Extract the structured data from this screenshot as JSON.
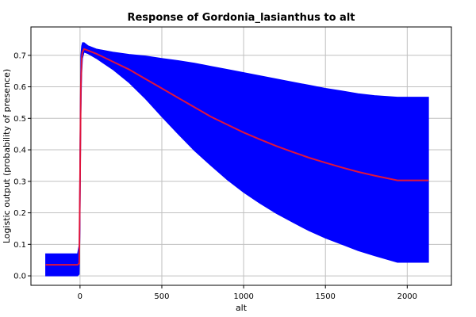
{
  "chart_data": {
    "type": "line",
    "title": "Response of Gordonia_lasianthus to alt",
    "xlabel": "alt",
    "ylabel": "Logistic output (probability of presence)",
    "xlim": [
      -300,
      2270
    ],
    "ylim": [
      -0.03,
      0.79
    ],
    "xticks": [
      0,
      500,
      1000,
      1500,
      2000
    ],
    "yticks": [
      0.0,
      0.1,
      0.2,
      0.3,
      0.4,
      0.5,
      0.6,
      0.7
    ],
    "grid": true,
    "colors": {
      "band": "#0000ff",
      "line": "#e0143c"
    },
    "series": [
      {
        "role": "mean",
        "x": [
          -210,
          -15,
          -5,
          0,
          5,
          10,
          15,
          25,
          50,
          100,
          200,
          300,
          400,
          500,
          600,
          700,
          800,
          900,
          1000,
          1100,
          1200,
          1300,
          1400,
          1500,
          1600,
          1700,
          1800,
          1940,
          2130
        ],
        "y": [
          0.035,
          0.035,
          0.04,
          0.3,
          0.6,
          0.69,
          0.71,
          0.72,
          0.715,
          0.705,
          0.68,
          0.655,
          0.625,
          0.595,
          0.565,
          0.535,
          0.505,
          0.48,
          0.455,
          0.433,
          0.412,
          0.393,
          0.375,
          0.359,
          0.344,
          0.33,
          0.318,
          0.303,
          0.303
        ]
      },
      {
        "role": "upper",
        "x": [
          -210,
          -15,
          -5,
          0,
          5,
          10,
          15,
          25,
          50,
          100,
          200,
          300,
          400,
          500,
          600,
          700,
          800,
          900,
          1000,
          1100,
          1200,
          1300,
          1400,
          1500,
          1600,
          1700,
          1800,
          1940,
          2130
        ],
        "y": [
          0.07,
          0.07,
          0.1,
          0.43,
          0.7,
          0.73,
          0.74,
          0.74,
          0.73,
          0.72,
          0.71,
          0.703,
          0.698,
          0.69,
          0.683,
          0.675,
          0.665,
          0.655,
          0.645,
          0.635,
          0.625,
          0.615,
          0.605,
          0.595,
          0.587,
          0.578,
          0.572,
          0.567,
          0.567
        ]
      },
      {
        "role": "lower",
        "x": [
          -210,
          -15,
          -5,
          0,
          5,
          10,
          15,
          25,
          50,
          100,
          200,
          300,
          400,
          500,
          600,
          700,
          800,
          900,
          1000,
          1100,
          1200,
          1300,
          1400,
          1500,
          1600,
          1700,
          1800,
          1940,
          2130
        ],
        "y": [
          0.0,
          0.0,
          0.005,
          0.15,
          0.5,
          0.64,
          0.69,
          0.71,
          0.705,
          0.69,
          0.655,
          0.613,
          0.562,
          0.505,
          0.45,
          0.397,
          0.35,
          0.305,
          0.265,
          0.23,
          0.198,
          0.17,
          0.143,
          0.12,
          0.1,
          0.08,
          0.064,
          0.043,
          0.043
        ]
      }
    ]
  }
}
